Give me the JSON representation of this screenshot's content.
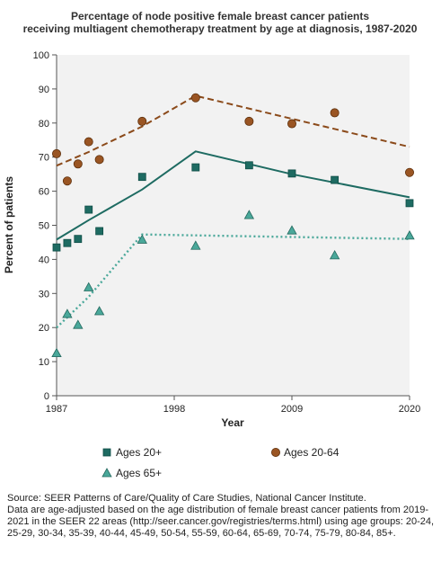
{
  "chart_data": {
    "type": "scatter",
    "title": [
      "Percentage of node positive female breast cancer patients",
      "receiving multiagent chemotherapy treatment by age at diagnosis, 1987-2020"
    ],
    "xlabel": "Year",
    "ylabel": "Percent of patients",
    "xlim": [
      1987,
      2020
    ],
    "ylim": [
      0,
      100
    ],
    "x_ticks": [
      "1987",
      "1998",
      "2009",
      "2020"
    ],
    "y_ticks": [
      "0",
      "10",
      "20",
      "30",
      "40",
      "50",
      "60",
      "70",
      "80",
      "90",
      "100"
    ],
    "grid": false,
    "legend_position": "bottom",
    "series": [
      {
        "name": "Ages 20+",
        "marker": "square",
        "color": "#1e6b62",
        "x": [
          1987,
          1988,
          1989,
          1990,
          1991,
          1995,
          2000,
          2005,
          2009,
          2013,
          2020
        ],
        "y": [
          43.5,
          44.8,
          46.0,
          54.6,
          48.3,
          64.2,
          67.0,
          67.6,
          65.2,
          63.3,
          56.5
        ],
        "trend": {
          "x": [
            1987,
            1990,
            1995,
            2000,
            2009,
            2020
          ],
          "y": [
            45.8,
            51.5,
            60.5,
            71.7,
            65.0,
            58.2
          ],
          "style": "solid"
        }
      },
      {
        "name": "Ages 20-64",
        "marker": "circle",
        "color": "#8b4a1a",
        "x": [
          1987,
          1988,
          1989,
          1990,
          1991,
          1995,
          2000,
          2005,
          2009,
          2013,
          2020
        ],
        "y": [
          71.0,
          63.0,
          68.0,
          74.5,
          69.3,
          80.5,
          87.4,
          80.5,
          79.8,
          83.0,
          65.5
        ],
        "trend": {
          "x": [
            1987,
            1990,
            1995,
            2000,
            2020
          ],
          "y": [
            67.5,
            71.5,
            79.0,
            88.0,
            73.0
          ],
          "style": "dashed"
        }
      },
      {
        "name": "Ages 65+",
        "marker": "triangle",
        "color": "#4aa89a",
        "x": [
          1987,
          1988,
          1989,
          1990,
          1991,
          1995,
          2000,
          2005,
          2009,
          2013,
          2020
        ],
        "y": [
          12.5,
          24.0,
          20.8,
          31.8,
          24.8,
          45.8,
          44.0,
          53.0,
          48.5,
          41.2,
          47.0
        ],
        "trend": {
          "x": [
            1987,
            1990,
            1995,
            2020
          ],
          "y": [
            20.0,
            29.0,
            47.3,
            46.0
          ],
          "style": "dotted"
        }
      }
    ]
  },
  "source_note": {
    "line1": "Source: SEER Patterns of Care/Quality of Care Studies, National Cancer Institute.",
    "line2": "Data are age-adjusted based on the age distribution of female breast cancer patients from 2019-2021 in the SEER 22 areas (http://seer.cancer.gov/registries/terms.html) using age groups: 20-24, 25-29, 30-34, 35-39, 40-44, 45-49, 50-54, 55-59, 60-64, 65-69, 70-74, 75-79, 80-84, 85+."
  }
}
